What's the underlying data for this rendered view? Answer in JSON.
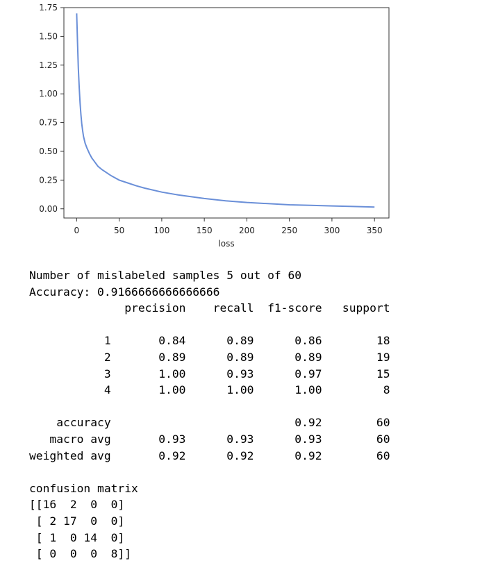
{
  "chart_data": {
    "type": "line",
    "title": "",
    "xlabel": "loss",
    "ylabel": "",
    "xlim": [
      -15,
      367
    ],
    "ylim": [
      -0.08,
      1.75
    ],
    "xticks": [
      0,
      50,
      100,
      150,
      200,
      250,
      300,
      350
    ],
    "yticks": [
      0.0,
      0.25,
      0.5,
      0.75,
      1.0,
      1.25,
      1.5,
      1.75
    ],
    "xtick_labels": [
      "0",
      "50",
      "100",
      "150",
      "200",
      "250",
      "300",
      "350"
    ],
    "ytick_labels": [
      "0.00",
      "0.25",
      "0.50",
      "0.75",
      "1.00",
      "1.25",
      "1.50",
      "1.75"
    ],
    "grid": false,
    "line_color": "#6a8fd8",
    "series": [
      {
        "x": [
          0,
          1,
          2,
          3,
          4,
          5,
          6,
          7,
          8,
          10,
          12,
          15,
          18,
          20,
          25,
          30,
          40,
          50,
          60,
          70,
          80,
          100,
          120,
          150,
          175,
          200,
          225,
          250,
          275,
          300,
          325,
          350
        ],
        "y": [
          1.7,
          1.45,
          1.22,
          1.05,
          0.92,
          0.82,
          0.74,
          0.68,
          0.63,
          0.57,
          0.53,
          0.48,
          0.44,
          0.42,
          0.37,
          0.34,
          0.29,
          0.25,
          0.225,
          0.2,
          0.18,
          0.145,
          0.12,
          0.09,
          0.07,
          0.055,
          0.045,
          0.035,
          0.03,
          0.025,
          0.02,
          0.015
        ]
      }
    ]
  },
  "report": {
    "mislabeled": "Number of mislabeled samples 5 out of 60",
    "accuracy_line": "Accuracy: 0.9166666666666666",
    "headers": [
      "precision",
      "recall",
      "f1-score",
      "support"
    ],
    "rows": [
      {
        "label": "1",
        "precision": "0.84",
        "recall": "0.89",
        "f1": "0.86",
        "support": "18"
      },
      {
        "label": "2",
        "precision": "0.89",
        "recall": "0.89",
        "f1": "0.89",
        "support": "19"
      },
      {
        "label": "3",
        "precision": "1.00",
        "recall": "0.93",
        "f1": "0.97",
        "support": "15"
      },
      {
        "label": "4",
        "precision": "1.00",
        "recall": "1.00",
        "f1": "1.00",
        "support": "8"
      }
    ],
    "summary": [
      {
        "label": "accuracy",
        "precision": "",
        "recall": "",
        "f1": "0.92",
        "support": "60"
      },
      {
        "label": "macro avg",
        "precision": "0.93",
        "recall": "0.93",
        "f1": "0.93",
        "support": "60"
      },
      {
        "label": "weighted avg",
        "precision": "0.92",
        "recall": "0.92",
        "f1": "0.92",
        "support": "60"
      }
    ]
  },
  "confusion": {
    "title": "confusion matrix",
    "lines": [
      "[[16  2  0  0]",
      " [ 2 17  0  0]",
      " [ 1  0 14  0]",
      " [ 0  0  0  8]]"
    ]
  }
}
